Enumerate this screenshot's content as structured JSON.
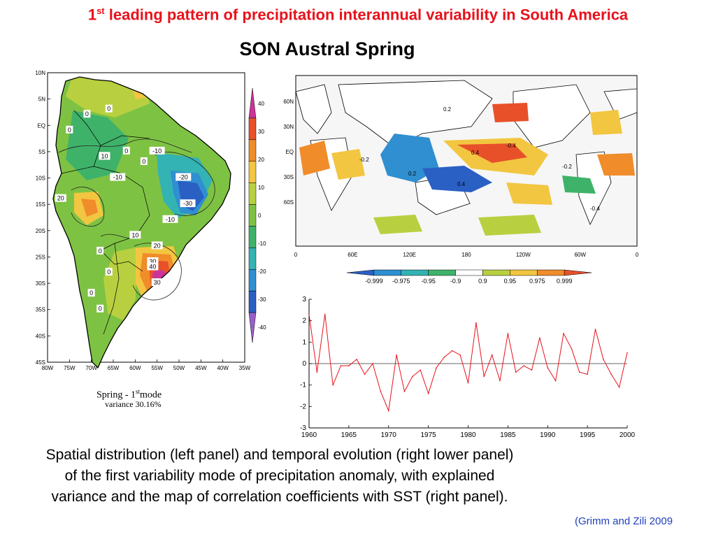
{
  "slide": {
    "title_part1": "1",
    "title_sup": "st",
    "title_part2": " leading pattern of precipitation interannual variability in South America",
    "subtitle": "SON   Austral Spring",
    "caption": "Spatial distribution (left panel) and temporal evolution (right lower panel) of the first variability mode of precipitation anomaly, with explained variance and the map of correlation coefficients with SST (right panel).",
    "citation": "(Grimm and Zili 2009"
  },
  "left_panel": {
    "mode_label_part1": "Spring - 1",
    "mode_label_sup": "st",
    "mode_label_part2": "mode",
    "variance_label": "variance 30.16%",
    "lat_ticks": [
      "10N",
      "5N",
      "EQ",
      "5S",
      "10S",
      "15S",
      "20S",
      "25S",
      "30S",
      "35S",
      "40S",
      "45S"
    ],
    "lon_ticks": [
      "80W",
      "75W",
      "70W",
      "65W",
      "60W",
      "55W",
      "50W",
      "45W",
      "40W",
      "35W"
    ],
    "colorbar_ticks": [
      "40",
      "30",
      "20",
      "10",
      "0",
      "-10",
      "-20",
      "-30",
      "-40"
    ],
    "colorbar_colors": [
      "#cc3399",
      "#e8502a",
      "#f08c2a",
      "#f2c640",
      "#b8d040",
      "#7ec243",
      "#3fb26a",
      "#33b3b3",
      "#2f8fd0",
      "#2a5fc4",
      "#9a5fc8"
    ],
    "contour_labels": [
      {
        "text": "0",
        "lon": -66,
        "lat": 3
      },
      {
        "text": "0",
        "lon": -71,
        "lat": 2
      },
      {
        "text": "0",
        "lon": -75,
        "lat": -1
      },
      {
        "text": "0",
        "lon": -62,
        "lat": -5
      },
      {
        "text": "10",
        "lon": -67,
        "lat": -6
      },
      {
        "text": "0",
        "lon": -58,
        "lat": -7
      },
      {
        "text": "-10",
        "lon": -55,
        "lat": -5
      },
      {
        "text": "-10",
        "lon": -64,
        "lat": -10
      },
      {
        "text": "-20",
        "lon": -49,
        "lat": -10
      },
      {
        "text": "-30",
        "lon": -48,
        "lat": -15
      },
      {
        "text": "-10",
        "lon": -52,
        "lat": -18
      },
      {
        "text": "20",
        "lon": -77,
        "lat": -14
      },
      {
        "text": "10",
        "lon": -60,
        "lat": -21
      },
      {
        "text": "20",
        "lon": -55,
        "lat": -23
      },
      {
        "text": "30",
        "lon": -56,
        "lat": -26
      },
      {
        "text": "40",
        "lon": -56,
        "lat": -27
      },
      {
        "text": "30",
        "lon": -55,
        "lat": -30
      },
      {
        "text": "0",
        "lon": -68,
        "lat": -24
      },
      {
        "text": "0",
        "lon": -66,
        "lat": -28
      },
      {
        "text": "0",
        "lon": -70,
        "lat": -32
      },
      {
        "text": "0",
        "lon": -68,
        "lat": -35
      }
    ]
  },
  "world_map": {
    "lat_ticks": [
      "60N",
      "30N",
      "EQ",
      "30S",
      "60S"
    ],
    "lon_ticks": [
      "0",
      "60E",
      "120E",
      "180",
      "120W",
      "60W",
      "0"
    ],
    "contour_labels": [
      "0.2",
      "0.4",
      "-0.2",
      "-0.4"
    ]
  },
  "legend": {
    "labels": [
      "-0.999",
      "-0.975",
      "-0.95",
      "-0.9",
      "0.9",
      "0.95",
      "0.975",
      "0.999"
    ],
    "colors": [
      "#2a5fc4",
      "#2f8fd0",
      "#33b3b3",
      "#3fb26a",
      "#ffffff",
      "#b8d040",
      "#f2c640",
      "#f08c2a",
      "#e8502a"
    ]
  },
  "chart_data": {
    "type": "line",
    "title": "",
    "xlabel": "",
    "ylabel": "",
    "xlim": [
      1960,
      2000
    ],
    "ylim": [
      -3,
      3
    ],
    "x_ticks": [
      1960,
      1965,
      1970,
      1975,
      1980,
      1985,
      1990,
      1995,
      2000
    ],
    "y_ticks": [
      3,
      2,
      1,
      0,
      -1,
      -2,
      -3
    ],
    "zero_line": true,
    "line_color": "#e8111b",
    "series": [
      {
        "x": [
          1960,
          1961,
          1962,
          1963,
          1964,
          1965,
          1966,
          1967,
          1968,
          1969,
          1970,
          1971,
          1972,
          1973,
          1974,
          1975,
          1976,
          1977,
          1978,
          1979,
          1980,
          1981,
          1982,
          1983,
          1984,
          1985,
          1986,
          1987,
          1988,
          1989,
          1990,
          1991,
          1992,
          1993,
          1994,
          1995,
          1996,
          1997,
          1998,
          1999,
          2000
        ],
        "values": [
          2.3,
          -0.4,
          2.3,
          -1.0,
          -0.1,
          -0.1,
          0.2,
          -0.5,
          0.0,
          -1.3,
          -2.2,
          0.4,
          -1.3,
          -0.6,
          -0.3,
          -1.4,
          -0.2,
          0.3,
          0.6,
          0.4,
          -0.9,
          1.9,
          -0.6,
          0.4,
          -0.8,
          1.4,
          -0.4,
          -0.1,
          -0.3,
          1.2,
          -0.2,
          -0.8,
          1.4,
          0.7,
          -0.4,
          -0.5,
          1.6,
          0.2,
          -0.5,
          -1.1,
          0.5
        ]
      }
    ]
  }
}
